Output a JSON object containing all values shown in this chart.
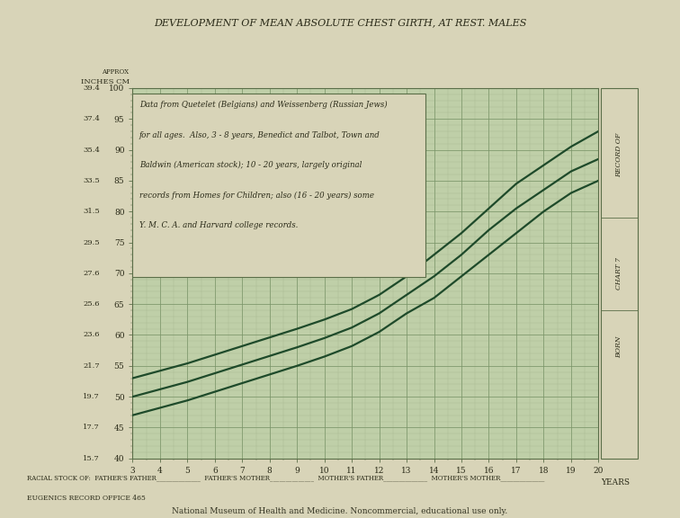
{
  "title": "DEVELOPMENT OF MEAN ABSOLUTE CHEST GIRTH, AT REST. MALES",
  "subtitle_lines": [
    "Data from Quetelet (Belgians) and Weissenberg (Russian Jews)",
    "for all ages.  Also, 3 - 8 years, Benedict and Talbot, Town and",
    "Baldwin (American stock); 10 - 20 years, largely original",
    "records from Homes for Children; also (16 - 20 years) some",
    "Y. M. C. A. and Harvard college records."
  ],
  "x_ticks": [
    3,
    4,
    5,
    6,
    7,
    8,
    9,
    10,
    11,
    12,
    13,
    14,
    15,
    16,
    17,
    18,
    19,
    20
  ],
  "y_ticks_cm": [
    40,
    45,
    50,
    55,
    60,
    65,
    70,
    75,
    80,
    85,
    90,
    95,
    100
  ],
  "y_ticks_inches": [
    "15.7",
    "17.7",
    "19.7",
    "21.7",
    "23.6",
    "25.6",
    "27.6",
    "29.5",
    "31.5",
    "33.5",
    "35.4",
    "37.4",
    "39.4"
  ],
  "paper_color": "#d8d4b8",
  "grid_bg_color": "#bfcfa8",
  "grid_minor_color": "#9aae84",
  "grid_major_color": "#7a9468",
  "line_color": "#1e4a2a",
  "border_color": "#5a6e48",
  "text_color": "#2a2a18",
  "lines": [
    {
      "name": "upper",
      "points_x": [
        3,
        4,
        5,
        6,
        7,
        8,
        9,
        10,
        11,
        12,
        13,
        14,
        15,
        16,
        17,
        18,
        19,
        20
      ],
      "points_y": [
        53.0,
        54.2,
        55.4,
        56.8,
        58.2,
        59.6,
        61.0,
        62.5,
        64.2,
        66.5,
        69.5,
        73.0,
        76.5,
        80.5,
        84.5,
        87.5,
        90.5,
        93.0
      ]
    },
    {
      "name": "middle",
      "points_x": [
        3,
        4,
        5,
        6,
        7,
        8,
        9,
        10,
        11,
        12,
        13,
        14,
        15,
        16,
        17,
        18,
        19,
        20
      ],
      "points_y": [
        50.0,
        51.2,
        52.4,
        53.8,
        55.2,
        56.6,
        58.0,
        59.5,
        61.2,
        63.5,
        66.5,
        69.5,
        73.0,
        77.0,
        80.5,
        83.5,
        86.5,
        88.5
      ]
    },
    {
      "name": "lower",
      "points_x": [
        3,
        4,
        5,
        6,
        7,
        8,
        9,
        10,
        11,
        12,
        13,
        14,
        15,
        16,
        17,
        18,
        19,
        20
      ],
      "points_y": [
        47.0,
        48.2,
        49.4,
        50.8,
        52.2,
        53.6,
        55.0,
        56.5,
        58.2,
        60.5,
        63.5,
        66.0,
        69.5,
        73.0,
        76.5,
        80.0,
        83.0,
        85.0
      ]
    }
  ]
}
